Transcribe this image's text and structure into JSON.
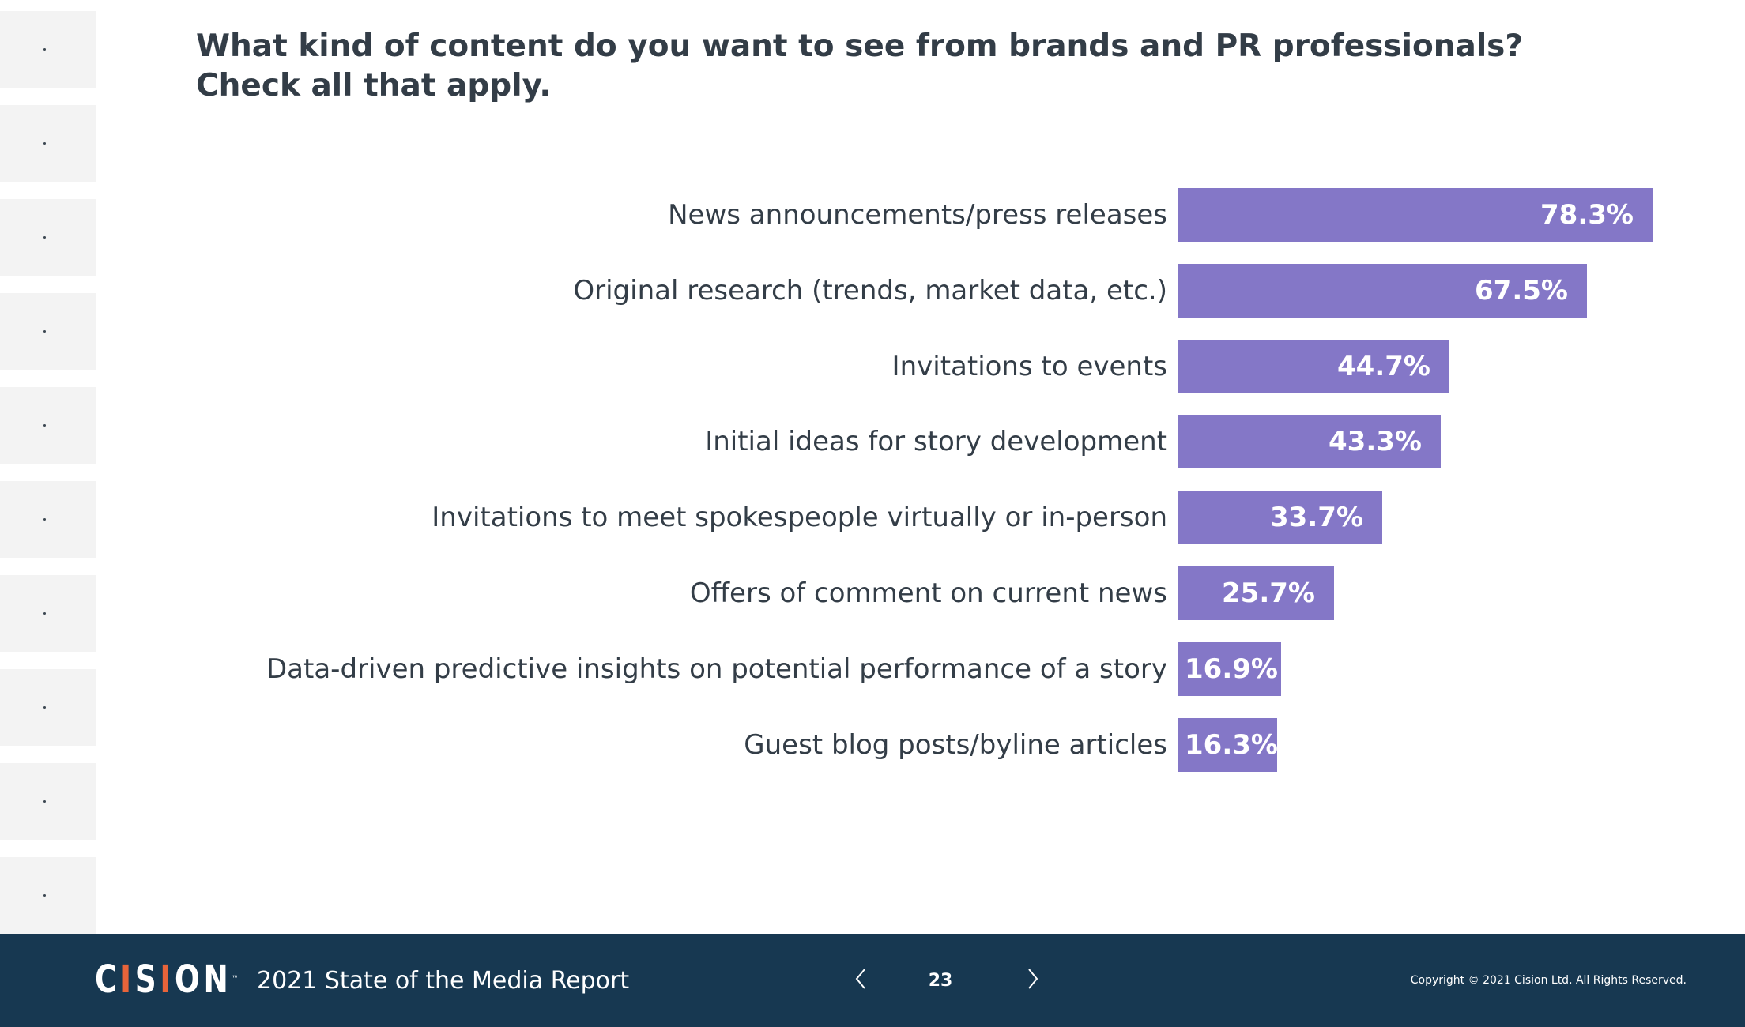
{
  "title": {
    "line1": "What kind of content do you want to see from brands and PR professionals?",
    "line2": "Check all that apply."
  },
  "chart_data": {
    "type": "bar",
    "orientation": "horizontal",
    "categories": [
      "News announcements/press releases",
      "Original research (trends, market data, etc.)",
      "Invitations to events",
      "Initial ideas for story development",
      "Invitations to meet spokespeople virtually or in-person",
      "Offers of comment on current news",
      "Data-driven predictive insights on potential performance of a story",
      "Guest blog posts/byline articles"
    ],
    "values": [
      78.3,
      67.5,
      44.7,
      43.3,
      33.7,
      25.7,
      16.9,
      16.3
    ],
    "value_labels": [
      "78.3%",
      "67.5%",
      "44.7%",
      "43.3%",
      "33.7%",
      "25.7%",
      "16.9%",
      "16.3%"
    ],
    "xlim": [
      0,
      100
    ],
    "grid": false,
    "bar_color": "#8477c7"
  },
  "footer": {
    "logo": "CISION",
    "report_title": "2021 State of the Media Report",
    "page_number": "23",
    "copyright": "Copyright © 2021 Cision Ltd. All Rights Reserved.",
    "background": "#173851",
    "accent": "#e8643a"
  },
  "sidebar": {
    "thumbnail_count": 10
  }
}
